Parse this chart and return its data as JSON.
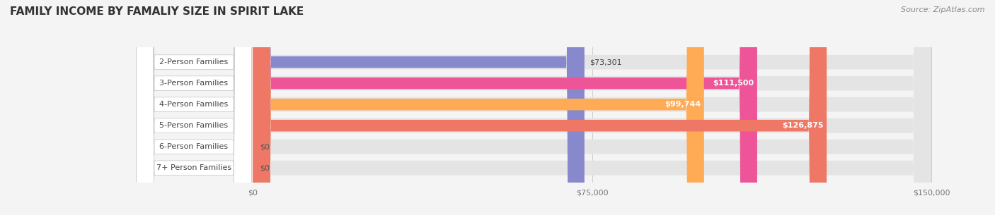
{
  "title": "FAMILY INCOME BY FAMALIY SIZE IN SPIRIT LAKE",
  "source": "Source: ZipAtlas.com",
  "categories": [
    "2-Person Families",
    "3-Person Families",
    "4-Person Families",
    "5-Person Families",
    "6-Person Families",
    "7+ Person Families"
  ],
  "values": [
    73301,
    111500,
    99744,
    126875,
    0,
    0
  ],
  "bar_colors": [
    "#8888CC",
    "#EE5599",
    "#FFAA55",
    "#EE7766",
    "#9999CC",
    "#BBAACC"
  ],
  "xlim_max": 150000,
  "value_labels": [
    "$73,301",
    "$111,500",
    "$99,744",
    "$126,875",
    "$0",
    "$0"
  ],
  "xtick_labels": [
    "$0",
    "$75,000",
    "$150,000"
  ],
  "xtick_values": [
    0,
    75000,
    150000
  ],
  "background_color": "#f4f4f4",
  "bar_bg_color": "#e4e4e4",
  "title_fontsize": 11,
  "label_fontsize": 8,
  "value_fontsize": 8,
  "source_fontsize": 8
}
